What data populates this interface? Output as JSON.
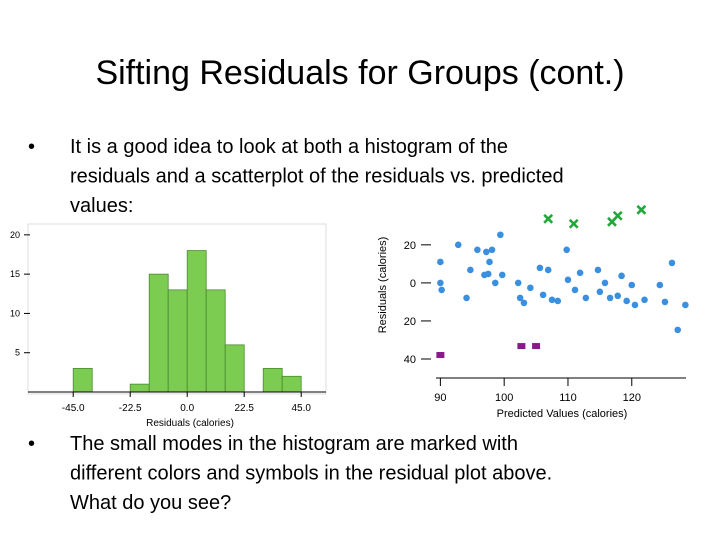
{
  "title": "Sifting Residuals for Groups (cont.)",
  "bullets": [
    [
      "It is a good idea to look at both a histogram of the",
      "residuals and a scatterplot of the residuals vs. predicted",
      "values:"
    ],
    [
      "The small modes in the histogram are marked with",
      "different colors and symbols in the residual plot above.",
      "What do you see?"
    ]
  ],
  "chart_data": [
    {
      "type": "histogram",
      "x_label": "Residuals (calories)",
      "bins": [
        -45,
        -37.5,
        -30,
        -22.5,
        -15,
        -7.5,
        0,
        7.5,
        15,
        22.5,
        30,
        37.5,
        45
      ],
      "counts": [
        3,
        0,
        0,
        1,
        15,
        13,
        18,
        13,
        6,
        0,
        3,
        2
      ],
      "color": "#7dcc52",
      "xlim": [
        -51,
        46.5
      ],
      "ylim": [
        0,
        21
      ],
      "xticks": [
        {
          "value": -45,
          "label": "-45.0"
        },
        {
          "value": -22.5,
          "label": "-22.5"
        },
        {
          "value": 0,
          "label": "0.0"
        },
        {
          "value": 22.5,
          "label": "22.5"
        },
        {
          "value": 45,
          "label": "45.0"
        }
      ],
      "yticks": [
        5,
        10,
        15,
        20
      ]
    },
    {
      "type": "scatter",
      "x_label": "Predicted Values (calories)",
      "y_label": "Residuals (calories)",
      "xlim": [
        89,
        128.5
      ],
      "ylim": [
        -45,
        42
      ],
      "xticks": [
        90,
        100,
        110,
        120
      ],
      "yticks": [
        {
          "value": 20,
          "label": "20"
        },
        0,
        {
          "value": -20,
          "label": "20"
        },
        {
          "value": -40,
          "label": "40"
        }
      ],
      "series": [
        {
          "color": "#3a8fde",
          "marker": "circle",
          "x": [
            92.8,
            90,
            90,
            90.2,
            94.7,
            95.8,
            97.2,
            97.7,
            96.9,
            97.5,
            98.1,
            99.4,
            94.1,
            98.6,
            99.7,
            102.2,
            102.5,
            103.1,
            104.1,
            105.6,
            106.1,
            106.9,
            107.5,
            108.4,
            109.8,
            110,
            111.1,
            111.9,
            112.8,
            114.7,
            115,
            115.8,
            116.6,
            117.8,
            118.4,
            119.2,
            120,
            120.5,
            122,
            124.4,
            125.2,
            126.3,
            127.2,
            128.4
          ],
          "y": [
            20,
            11,
            0,
            -3.7,
            6.8,
            17.4,
            16.3,
            11,
            4.2,
            4.7,
            17.4,
            25.3,
            -7.9,
            0,
            4.2,
            0,
            -7.9,
            -10.5,
            -2.6,
            7.9,
            -6.3,
            6.8,
            -8.9,
            -9.5,
            17.4,
            1.6,
            -3.7,
            5.3,
            -7.9,
            6.8,
            -4.7,
            0,
            -7.9,
            -6.8,
            3.7,
            -9.5,
            -1.1,
            -11.6,
            -8.9,
            -1.1,
            -10,
            10.5,
            -24.7,
            -11.6
          ]
        },
        {
          "color": "#22a83a",
          "marker": "cross",
          "x": [
            106.9,
            110.9,
            116.9,
            117.8,
            121.5
          ],
          "y": [
            33.7,
            31.1,
            32.1,
            35.3,
            38.4
          ]
        },
        {
          "color": "#8a1a8c",
          "marker": "square",
          "x": [
            90,
            102.7,
            105
          ],
          "y": [
            -37.9,
            -33.2,
            -33.2
          ]
        }
      ]
    }
  ]
}
